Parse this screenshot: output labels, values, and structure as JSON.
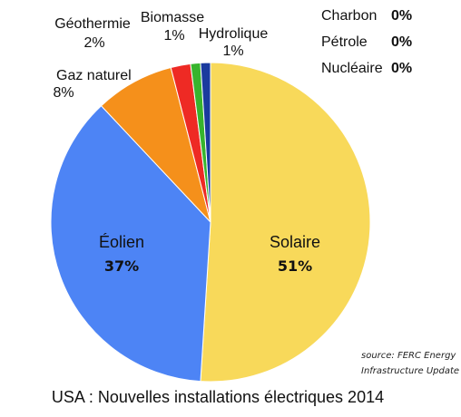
{
  "chart_data": {
    "type": "pie",
    "title": "USA : Nouvelles installations électriques 2014",
    "source_line1": "source: FERC Energy",
    "source_line2": "Infrastructure Update",
    "slices": [
      {
        "label": "Solaire",
        "value": 51,
        "value_label": "51%",
        "color": "#f8d95a"
      },
      {
        "label": "Éolien",
        "value": 37,
        "value_label": "37%",
        "color": "#4d84f5"
      },
      {
        "label": "Gaz naturel",
        "value": 8,
        "value_label": "8%",
        "color": "#f5901b"
      },
      {
        "label": "Géothermie",
        "value": 2,
        "value_label": "2%",
        "color": "#ee2a24"
      },
      {
        "label": "Biomasse",
        "value": 1,
        "value_label": "1%",
        "color": "#37b42d"
      },
      {
        "label": "Hydrolique",
        "value": 1,
        "value_label": "1%",
        "color": "#1a3b9e"
      }
    ],
    "zero_entries": [
      {
        "label": "Charbon",
        "value": 0,
        "value_label": "0%"
      },
      {
        "label": "Pétrole",
        "value": 0,
        "value_label": "0%"
      },
      {
        "label": "Nucléaire",
        "value": 0,
        "value_label": "0%"
      }
    ]
  }
}
